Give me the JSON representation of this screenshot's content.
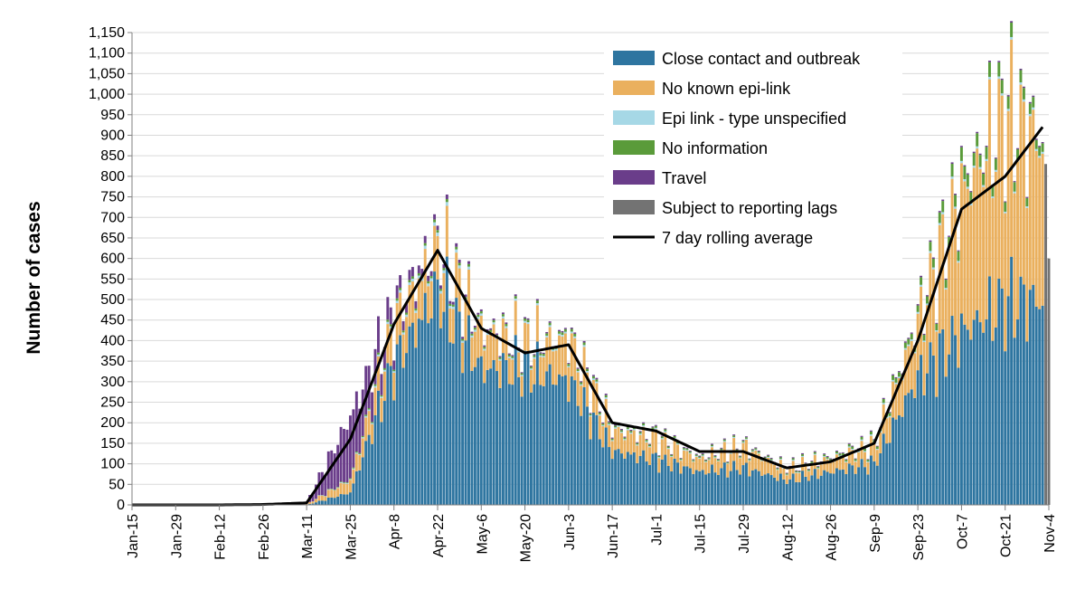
{
  "chart_data": {
    "type": "bar",
    "stacked": true,
    "title": "",
    "xlabel": "",
    "ylabel": "Number of cases",
    "ylim": [
      0,
      1150
    ],
    "y_ticks": [
      0,
      50,
      100,
      150,
      200,
      250,
      300,
      350,
      400,
      450,
      500,
      550,
      600,
      650,
      700,
      750,
      800,
      850,
      900,
      950,
      1000,
      1050,
      1100,
      1150
    ],
    "y_tick_labels": [
      "0",
      "50",
      "100",
      "150",
      "200",
      "250",
      "300",
      "350",
      "400",
      "450",
      "500",
      "550",
      "600",
      "650",
      "700",
      "750",
      "800",
      "850",
      "900",
      "950",
      "1,000",
      "1,050",
      "1,100",
      "1,150"
    ],
    "x_tick_labels": [
      "Jan-15",
      "Jan-29",
      "Feb-12",
      "Feb-26",
      "Mar-11",
      "Mar-25",
      "Apr-8",
      "Apr-22",
      "May-6",
      "May-20",
      "Jun-3",
      "Jun-17",
      "Jul-1",
      "Jul-15",
      "Jul-29",
      "Aug-12",
      "Aug-26",
      "Sep-9",
      "Sep-23",
      "Oct-7",
      "Oct-21",
      "Nov-4"
    ],
    "legend_position": "top-right",
    "series": [
      {
        "name": "Close contact and outbreak",
        "color": "#2e75a0",
        "approx_values_by_tick": [
          0,
          0,
          0,
          0,
          0,
          30,
          340,
          520,
          330,
          330,
          300,
          130,
          110,
          80,
          90,
          60,
          80,
          100,
          310,
          420,
          490,
          500
        ]
      },
      {
        "name": "No known epi-link",
        "color": "#eab05e",
        "approx_values_by_tick": [
          0,
          0,
          0,
          0,
          2,
          30,
          90,
          100,
          90,
          60,
          100,
          50,
          50,
          30,
          50,
          25,
          30,
          40,
          130,
          330,
          440,
          370
        ]
      },
      {
        "name": "Epi link - type unspecified",
        "color": "#a6d8e6",
        "approx_values_by_tick": [
          0,
          0,
          0,
          0,
          0,
          2,
          5,
          8,
          5,
          4,
          4,
          3,
          3,
          2,
          2,
          2,
          2,
          3,
          4,
          5,
          5,
          5
        ]
      },
      {
        "name": "No information",
        "color": "#5a9b3a",
        "approx_values_by_tick": [
          0,
          0,
          0,
          0,
          0,
          2,
          5,
          6,
          5,
          5,
          6,
          4,
          4,
          3,
          3,
          3,
          4,
          6,
          15,
          30,
          30,
          20
        ]
      },
      {
        "name": "Travel",
        "color": "#6a3d8a",
        "approx_values_by_tick": [
          0,
          0,
          0,
          0,
          5,
          150,
          30,
          10,
          4,
          3,
          3,
          3,
          2,
          2,
          2,
          2,
          2,
          2,
          3,
          3,
          3,
          3
        ]
      },
      {
        "name": "Subject to reporting lags",
        "color": "#737373",
        "approx_values_by_tick": [
          0,
          0,
          0,
          0,
          0,
          0,
          0,
          0,
          0,
          0,
          0,
          0,
          0,
          0,
          0,
          0,
          0,
          0,
          0,
          0,
          0,
          830
        ]
      }
    ],
    "rolling_average": {
      "name": "7 day rolling average",
      "color": "#000000",
      "approx_values_by_tick": [
        0,
        0,
        0,
        1,
        5,
        160,
        440,
        620,
        430,
        370,
        390,
        200,
        180,
        130,
        130,
        90,
        105,
        150,
        400,
        720,
        800,
        940
      ]
    }
  }
}
